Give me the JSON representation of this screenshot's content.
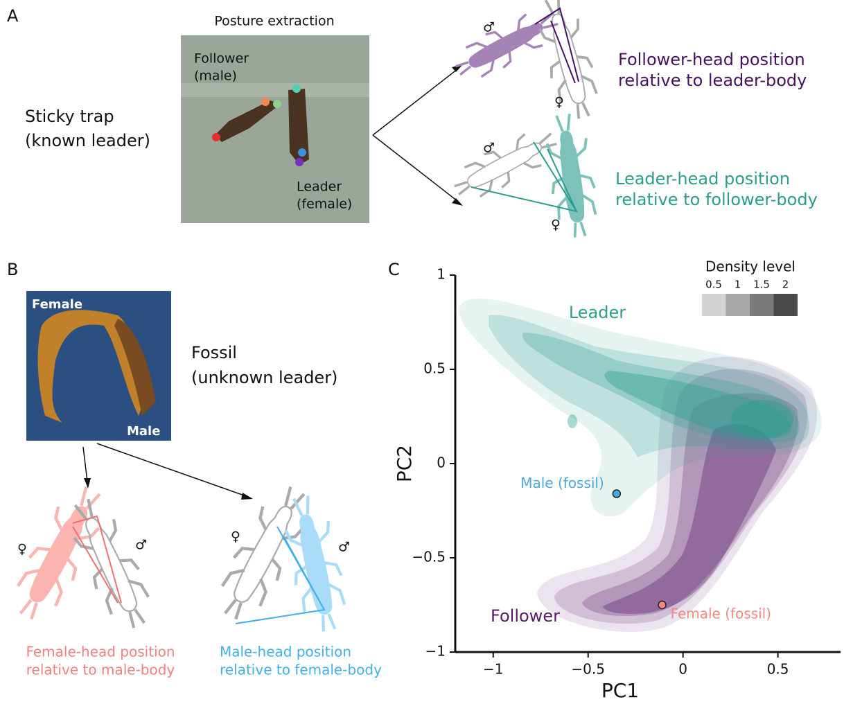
{
  "panel_a": {
    "label": "A",
    "title": "Posture extraction",
    "follower_label": [
      "Follower",
      "(male)"
    ],
    "leader_label": [
      "Leader",
      "(female)"
    ],
    "condition": [
      "Sticky trap",
      "(known leader)"
    ],
    "male_symbol": "♂",
    "female_symbol": "♀",
    "follower_result": [
      "Follower-head position",
      "relative to leader-body"
    ],
    "leader_result": [
      "Leader-head position",
      "relative to follower-body"
    ]
  },
  "panel_b": {
    "label": "B",
    "photo_female": "Female",
    "photo_male": "Male",
    "condition": [
      "Fossil",
      "(unknown leader)"
    ],
    "female_result": [
      "Female-head position",
      "relative to male-body"
    ],
    "male_result": [
      "Male-head position",
      "relative to female-body"
    ]
  },
  "chart_data": {
    "type": "scatter",
    "label": "C",
    "xlabel": "PC1",
    "ylabel": "PC2",
    "xlim": [
      -1.2,
      0.83
    ],
    "ylim": [
      -1,
      1
    ],
    "xticks": [
      {
        "value": -1,
        "label": "−1"
      },
      {
        "value": -0.5,
        "label": "−0.5"
      },
      0,
      0.5
    ],
    "yticks": [
      {
        "value": -1,
        "label": "−1"
      },
      {
        "value": -0.5,
        "label": "−0.5"
      },
      0,
      0.5,
      1
    ],
    "groups": [
      {
        "name": "Leader",
        "color": "#2a9d8f"
      },
      {
        "name": "Follower",
        "color": "#5a1a6a"
      }
    ],
    "series": [
      {
        "name": "Male (fossil)",
        "color": "#4aa8e0",
        "x": [
          -0.35
        ],
        "values": [
          -0.16
        ]
      },
      {
        "name": "Female (fossil)",
        "color": "#f08a80",
        "x": [
          -0.11
        ],
        "values": [
          -0.75
        ]
      }
    ],
    "legend_title": "Density level",
    "density_levels": [
      0.5,
      1,
      1.5,
      2
    ],
    "density_colors": [
      "#d4d4d4",
      "#a8a8a8",
      "#7a7a7a",
      "#4a4a4a"
    ]
  }
}
